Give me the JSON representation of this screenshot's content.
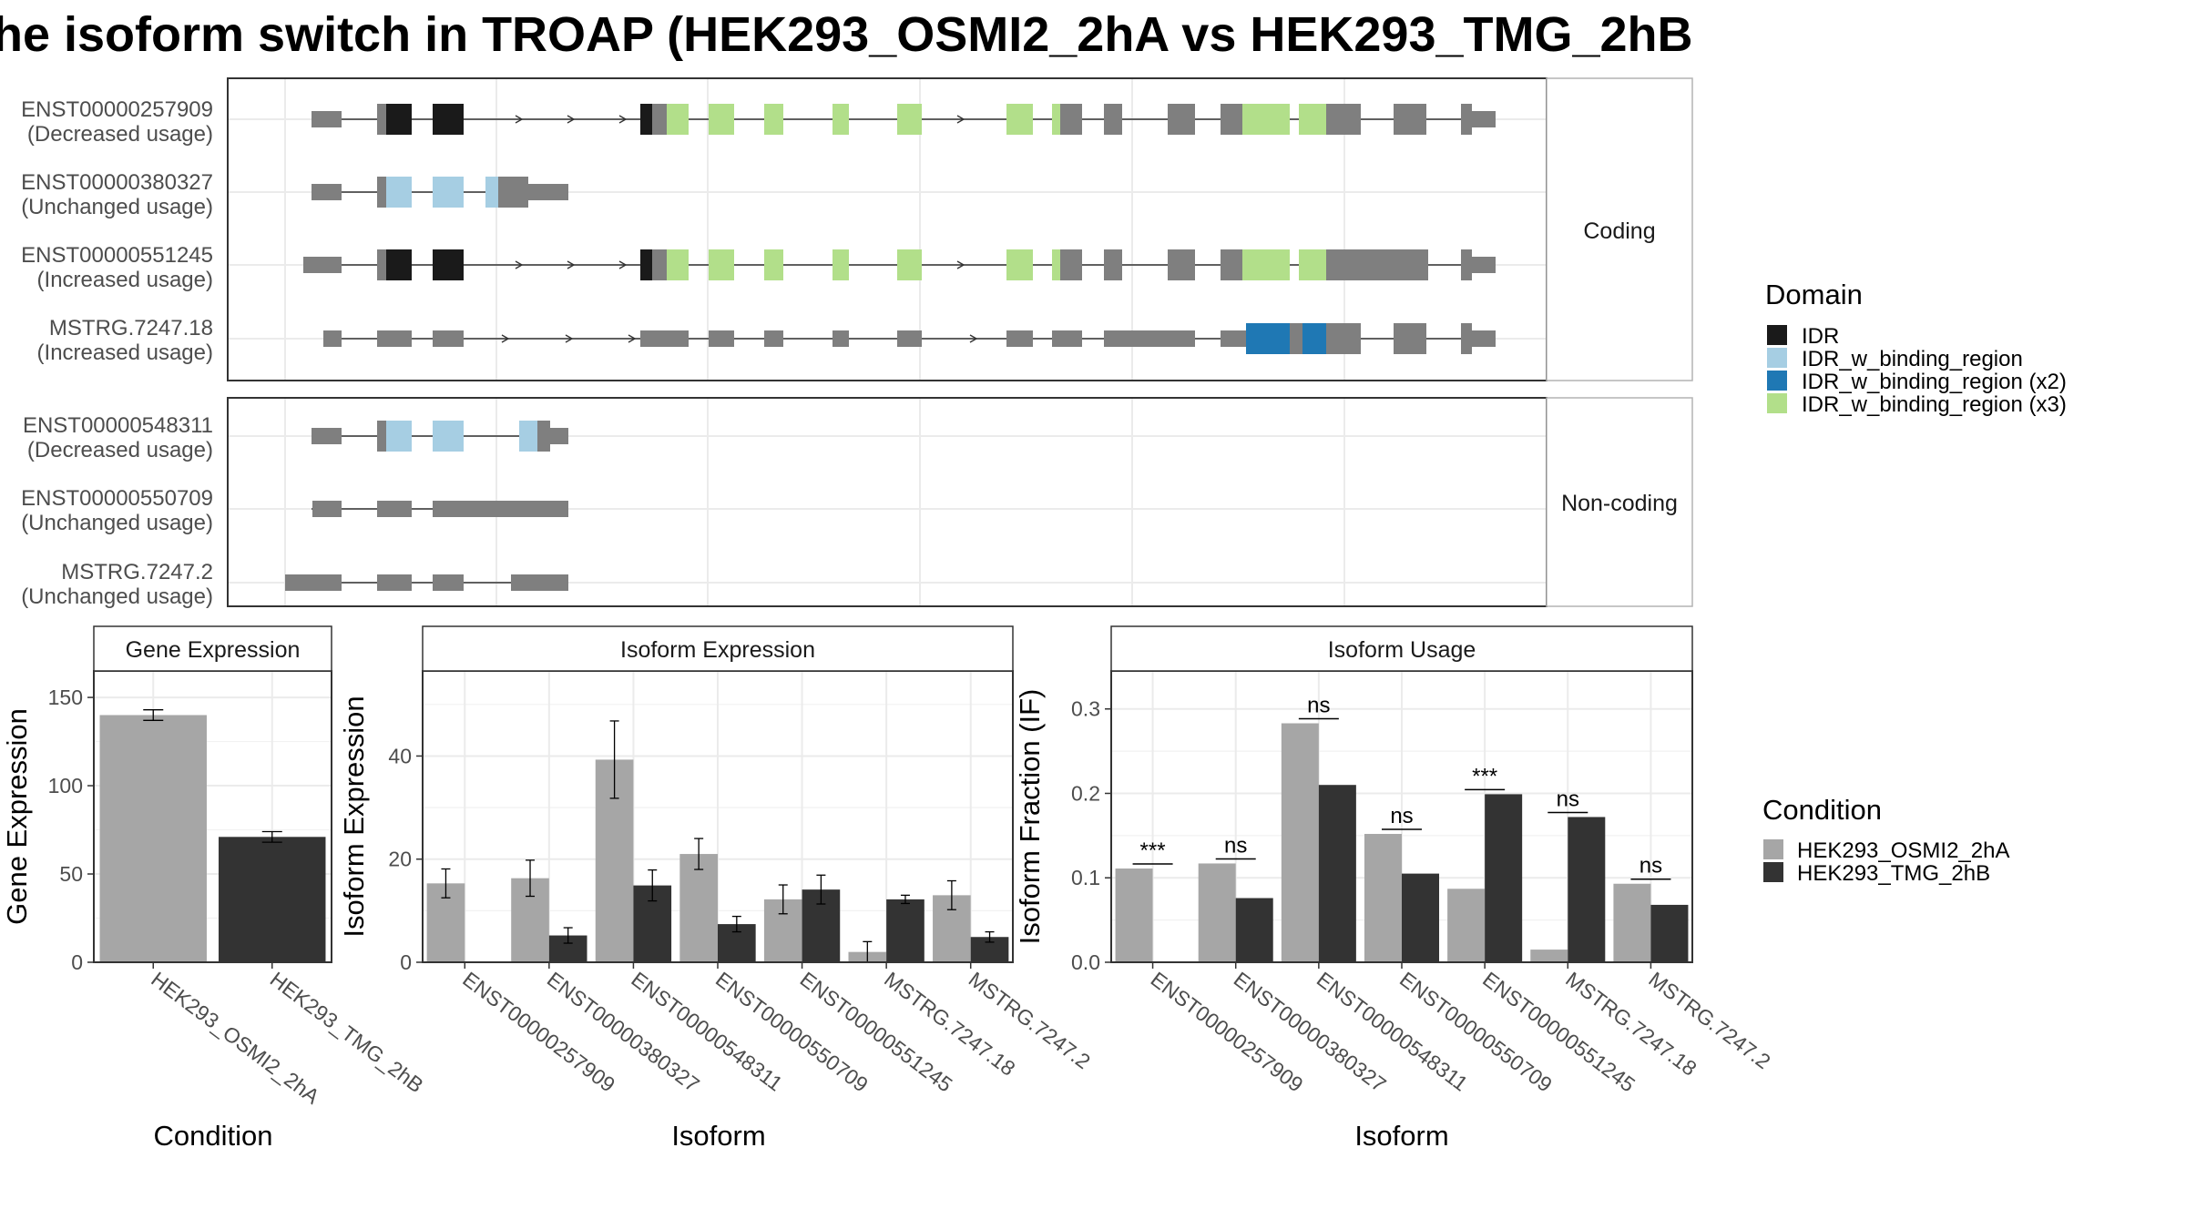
{
  "title": "he isoform switch in TROAP (HEK293_OSMI2_2hA vs HEK293_TMG_2hB",
  "structure": {
    "panels": [
      {
        "label": "Coding",
        "isoforms": [
          {
            "id": "ENST00000257909",
            "usage": "(Decreased usage)"
          },
          {
            "id": "ENST00000380327",
            "usage": "(Unchanged usage)"
          },
          {
            "id": "ENST00000551245",
            "usage": "(Increased usage)"
          },
          {
            "id": "MSTRG.7247.18",
            "usage": "(Increased usage)"
          }
        ]
      },
      {
        "label": "Non-coding",
        "isoforms": [
          {
            "id": "ENST00000548311",
            "usage": "(Decreased usage)"
          },
          {
            "id": "ENST00000550709",
            "usage": "(Unchanged usage)"
          },
          {
            "id": "MSTRG.7247.2",
            "usage": "(Unchanged usage)"
          }
        ]
      }
    ]
  },
  "legend_domain": {
    "title": "Domain",
    "items": [
      {
        "label": "IDR",
        "color": "#1a1a1a"
      },
      {
        "label": "IDR_w_binding_region",
        "color": "#a6cee3"
      },
      {
        "label": "IDR_w_binding_region (x2)",
        "color": "#1f78b4"
      },
      {
        "label": "IDR_w_binding_region (x3)",
        "color": "#b2df8a"
      }
    ]
  },
  "legend_condition": {
    "title": "Condition",
    "items": [
      {
        "label": "HEK293_OSMI2_2hA",
        "color": "#a6a6a6"
      },
      {
        "label": "HEK293_TMG_2hB",
        "color": "#333333"
      }
    ]
  },
  "colors": {
    "exon": "#7f7f7f",
    "panel_border": "#333333",
    "grid": "#ebebeb"
  },
  "chart_data": [
    {
      "type": "bar",
      "title": "Gene Expression",
      "xlabel": "Condition",
      "ylabel": "Gene Expression",
      "categories": [
        "HEK293_OSMI2_2hA",
        "HEK293_TMG_2hB"
      ],
      "values": [
        140,
        71
      ],
      "errors": [
        3,
        3
      ],
      "ylim": [
        0,
        165
      ],
      "yticks": [
        0,
        50,
        100,
        150
      ]
    },
    {
      "type": "bar",
      "title": "Isoform Expression",
      "xlabel": "Isoform",
      "ylabel": "Isoform Expression",
      "categories": [
        "ENST00000257909",
        "ENST00000380327",
        "ENST00000548311",
        "ENST00000550709",
        "ENST00000551245",
        "MSTRG.7247.18",
        "MSTRG.7247.2"
      ],
      "series": [
        {
          "name": "HEK293_OSMI2_2hA",
          "values": [
            15.3,
            16.3,
            39.3,
            21.0,
            12.2,
            2.0,
            13.0
          ],
          "errors": [
            2.8,
            3.5,
            7.5,
            3.0,
            2.8,
            2.0,
            2.8
          ]
        },
        {
          "name": "HEK293_TMG_2hB",
          "values": [
            0,
            5.2,
            14.9,
            7.4,
            14.1,
            12.2,
            4.9
          ],
          "errors": [
            0,
            1.5,
            3.0,
            1.5,
            2.8,
            0.8,
            1.0
          ]
        }
      ],
      "ylim": [
        0,
        56.5
      ],
      "yticks": [
        0,
        20,
        40
      ]
    },
    {
      "type": "bar",
      "title": "Isoform Usage",
      "xlabel": "Isoform",
      "ylabel": "Isoform Fraction (IF)",
      "categories": [
        "ENST00000257909",
        "ENST00000380327",
        "ENST00000548311",
        "ENST00000550709",
        "ENST00000551245",
        "MSTRG.7247.18",
        "MSTRG.7247.2"
      ],
      "series": [
        {
          "name": "HEK293_OSMI2_2hA",
          "values": [
            0.111,
            0.117,
            0.283,
            0.152,
            0.087,
            0.015,
            0.093
          ]
        },
        {
          "name": "HEK293_TMG_2hB",
          "values": [
            0,
            0.076,
            0.21,
            0.105,
            0.199,
            0.172,
            0.068
          ]
        }
      ],
      "significance": [
        "***",
        "ns",
        "ns",
        "ns",
        "***",
        "ns",
        "ns"
      ],
      "ylim": [
        0,
        0.345
      ],
      "yticks": [
        0.0,
        0.1,
        0.2,
        0.3
      ],
      "ytick_labels": [
        "0.0",
        "0.1",
        "0.2",
        "0.3"
      ]
    }
  ]
}
